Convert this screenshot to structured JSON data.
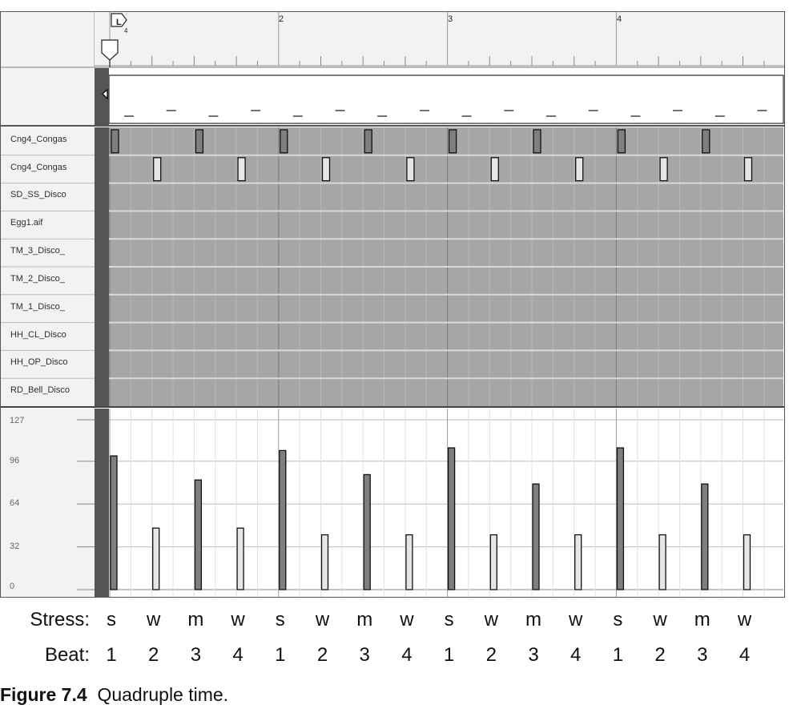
{
  "editor": {
    "bar_numbers": [
      "2",
      "3",
      "4"
    ],
    "locator": {
      "letter": "L",
      "subscript": "4"
    },
    "tracks": [
      "Cng4_Congas",
      "Cng4_Congas",
      "SD_SS_Disco",
      "Egg1.aif",
      "TM_3_Disco_",
      "TM_2_Disco_",
      "TM_1_Disco_",
      "HH_CL_Disco",
      "HH_OP_Disco",
      "RD_Bell_Disco"
    ],
    "velocity_scale": [
      "127",
      "96",
      "64",
      "32",
      "0"
    ],
    "velocity_range": [
      0,
      127
    ],
    "notes": [
      {
        "row": 0,
        "step": 0,
        "velocity": 100,
        "accent": true
      },
      {
        "row": 1,
        "step": 1,
        "velocity": 46,
        "accent": false
      },
      {
        "row": 0,
        "step": 2,
        "velocity": 82,
        "accent": true
      },
      {
        "row": 1,
        "step": 3,
        "velocity": 46,
        "accent": false
      },
      {
        "row": 0,
        "step": 4,
        "velocity": 104,
        "accent": true
      },
      {
        "row": 1,
        "step": 5,
        "velocity": 41,
        "accent": false
      },
      {
        "row": 0,
        "step": 6,
        "velocity": 86,
        "accent": true
      },
      {
        "row": 1,
        "step": 7,
        "velocity": 41,
        "accent": false
      },
      {
        "row": 0,
        "step": 8,
        "velocity": 106,
        "accent": true
      },
      {
        "row": 1,
        "step": 9,
        "velocity": 41,
        "accent": false
      },
      {
        "row": 0,
        "step": 10,
        "velocity": 79,
        "accent": true
      },
      {
        "row": 1,
        "step": 11,
        "velocity": 41,
        "accent": false
      },
      {
        "row": 0,
        "step": 12,
        "velocity": 106,
        "accent": true
      },
      {
        "row": 1,
        "step": 13,
        "velocity": 41,
        "accent": false
      },
      {
        "row": 0,
        "step": 14,
        "velocity": 79,
        "accent": true
      },
      {
        "row": 1,
        "step": 15,
        "velocity": 41,
        "accent": false
      }
    ],
    "colors": {
      "header_bg": "#f2f2f2",
      "grid_bg": "#a6a6a6",
      "row_line": "#d9d9d9",
      "accent_note": "#7f7f7f",
      "soft_note": "#e6e6e6",
      "sidebar_dark": "#555555"
    }
  },
  "table": {
    "stress_label": "Stress:",
    "beat_label": "Beat:",
    "stress": [
      "s",
      "w",
      "m",
      "w",
      "s",
      "w",
      "m",
      "w",
      "s",
      "w",
      "m",
      "w",
      "s",
      "w",
      "m",
      "w"
    ],
    "beat": [
      "1",
      "2",
      "3",
      "4",
      "1",
      "2",
      "3",
      "4",
      "1",
      "2",
      "3",
      "4",
      "1",
      "2",
      "3",
      "4"
    ]
  },
  "caption": {
    "label": "Figure 7.4",
    "text": "Quadruple time."
  }
}
